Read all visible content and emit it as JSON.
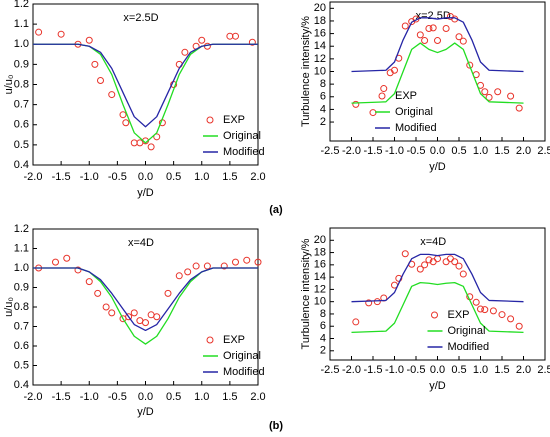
{
  "captions": [
    "(a)",
    "(b)"
  ],
  "chart_data": [
    {
      "type": "line",
      "annotation": "x=2.5D",
      "xlabel": "y/D",
      "ylabel": "u/u₀",
      "legend": "lower right",
      "xlim": [
        -2,
        2
      ],
      "xticks": [
        {
          "value": -2,
          "label": "-2.0"
        },
        -1.5,
        {
          "value": -1,
          "label": "-1.0"
        },
        -0.5,
        {
          "value": 0,
          "label": "0.0"
        },
        0.5,
        {
          "value": 1,
          "label": "1.0"
        },
        1.5,
        {
          "value": 2,
          "label": "2.0"
        }
      ],
      "ylim": [
        0.4,
        1.2
      ],
      "yticks": [
        0.4,
        0.5,
        0.6,
        0.7,
        0.8,
        0.9,
        {
          "value": 1,
          "label": "1.0"
        },
        1.1,
        1.2
      ],
      "series": [
        {
          "name": "EXP",
          "style": "markers",
          "color": "#e8332a",
          "x": [
            -1.9,
            -1.5,
            -1.2,
            -1.0,
            -0.9,
            -0.8,
            -0.6,
            -0.4,
            -0.35,
            -0.2,
            -0.1,
            0.0,
            0.1,
            0.2,
            0.3,
            0.5,
            0.6,
            0.7,
            0.9,
            1.0,
            1.1,
            1.5,
            1.6,
            1.9
          ],
          "values": [
            1.06,
            1.05,
            1.0,
            1.02,
            0.9,
            0.82,
            0.75,
            0.65,
            0.61,
            0.51,
            0.51,
            0.52,
            0.49,
            0.54,
            0.61,
            0.8,
            0.9,
            0.96,
            0.99,
            1.02,
            0.99,
            1.04,
            1.04,
            1.01
          ]
        },
        {
          "name": "Original",
          "style": "line",
          "color": "#22dd22",
          "x": [
            -2,
            -1.5,
            -1.2,
            -1,
            -0.8,
            -0.6,
            -0.4,
            -0.2,
            0,
            0.2,
            0.4,
            0.6,
            0.8,
            1,
            1.2,
            1.5,
            2
          ],
          "values": [
            1.0,
            1.0,
            1.0,
            0.99,
            0.95,
            0.85,
            0.7,
            0.56,
            0.51,
            0.56,
            0.7,
            0.85,
            0.95,
            0.99,
            1.0,
            1.0,
            1.0
          ]
        },
        {
          "name": "Modified",
          "style": "line",
          "color": "#2626a6",
          "x": [
            -2,
            -1.5,
            -1.2,
            -1,
            -0.8,
            -0.6,
            -0.4,
            -0.2,
            0,
            0.2,
            0.4,
            0.6,
            0.8,
            1,
            1.2,
            1.5,
            2
          ],
          "values": [
            1.0,
            1.0,
            1.0,
            0.99,
            0.96,
            0.88,
            0.76,
            0.64,
            0.59,
            0.64,
            0.76,
            0.88,
            0.96,
            0.99,
            1.0,
            1.0,
            1.0
          ]
        }
      ]
    },
    {
      "type": "line",
      "annotation": "x=2.5D",
      "xlabel": "y/D",
      "ylabel": "Turbulence intensity/%",
      "legend": "lower left",
      "xlim": [
        -2.5,
        2.5
      ],
      "xticks": [
        -2.5,
        {
          "value": -2,
          "label": "-2.0"
        },
        -1.5,
        {
          "value": -1,
          "label": "-1.0"
        },
        -0.5,
        {
          "value": 0,
          "label": "0.0"
        },
        0.5,
        {
          "value": 1,
          "label": "1.0"
        },
        1.5,
        {
          "value": 2,
          "label": "2.0"
        },
        2.5
      ],
      "ylim": [
        -1,
        21
      ],
      "yticks": [
        2,
        4,
        6,
        8,
        10,
        12,
        14,
        16,
        18,
        20
      ],
      "series": [
        {
          "name": "EXP",
          "style": "markers",
          "color": "#e8332a",
          "x": [
            -1.9,
            -1.5,
            -1.25,
            -1.1,
            -1.0,
            -0.9,
            -0.75,
            -0.6,
            -0.5,
            -0.4,
            -0.3,
            -0.2,
            -0.1,
            0.0,
            0.2,
            0.3,
            0.4,
            0.5,
            0.6,
            0.75,
            0.9,
            1.0,
            1.1,
            1.2,
            1.4,
            1.7,
            1.9
          ],
          "values": [
            4.8,
            3.5,
            7.3,
            9.8,
            10.2,
            12.1,
            17.2,
            17.9,
            18.3,
            15.8,
            14.9,
            16.8,
            16.9,
            14.9,
            16.8,
            18.7,
            18.3,
            15.5,
            14.8,
            11.0,
            9.5,
            7.8,
            6.8,
            5.9,
            6.8,
            6.1,
            4.2
          ]
        },
        {
          "name": "Original",
          "style": "line",
          "color": "#22dd22",
          "x": [
            -2,
            -1.2,
            -1,
            -0.8,
            -0.6,
            -0.4,
            -0.2,
            0,
            0.2,
            0.4,
            0.6,
            0.8,
            1,
            1.2,
            2
          ],
          "values": [
            5,
            5.2,
            6.5,
            10,
            13.5,
            14.5,
            13.5,
            13,
            13.5,
            14.5,
            13.5,
            10,
            6.5,
            5.2,
            5
          ]
        },
        {
          "name": "Modified",
          "style": "line",
          "color": "#2626a6",
          "x": [
            -2,
            -1.2,
            -1,
            -0.8,
            -0.6,
            -0.4,
            -0.2,
            0,
            0.2,
            0.4,
            0.6,
            0.8,
            1,
            1.2,
            2
          ],
          "values": [
            10,
            10.2,
            11.5,
            15,
            17.8,
            18.5,
            18.5,
            18.3,
            18.5,
            18.5,
            17.8,
            15,
            11.5,
            10.2,
            10
          ]
        }
      ]
    },
    {
      "type": "line",
      "annotation": "x=4D",
      "xlabel": "y/D",
      "ylabel": "u/u₀",
      "legend": "lower right",
      "xlim": [
        -2,
        2
      ],
      "xticks": [
        {
          "value": -2,
          "label": "-2.0"
        },
        -1.5,
        {
          "value": -1,
          "label": "-1.0"
        },
        -0.5,
        {
          "value": 0,
          "label": "0.0"
        },
        0.5,
        {
          "value": 1,
          "label": "1.0"
        },
        1.5,
        {
          "value": 2,
          "label": "2.0"
        }
      ],
      "ylim": [
        0.4,
        1.2
      ],
      "yticks": [
        0.4,
        0.5,
        0.6,
        0.7,
        0.8,
        0.9,
        {
          "value": 1,
          "label": "1.0"
        },
        1.1,
        1.2
      ],
      "series": [
        {
          "name": "EXP",
          "style": "markers",
          "color": "#e8332a",
          "x": [
            -1.9,
            -1.6,
            -1.4,
            -1.2,
            -1.0,
            -0.85,
            -0.7,
            -0.6,
            -0.4,
            -0.3,
            -0.2,
            -0.1,
            0.0,
            0.1,
            0.2,
            0.4,
            0.6,
            0.75,
            0.9,
            1.1,
            1.4,
            1.6,
            1.8,
            2.0
          ],
          "values": [
            1.0,
            1.03,
            1.05,
            0.99,
            0.93,
            0.87,
            0.8,
            0.77,
            0.74,
            0.75,
            0.77,
            0.73,
            0.72,
            0.76,
            0.75,
            0.87,
            0.96,
            0.98,
            1.01,
            1.01,
            1.01,
            1.03,
            1.04,
            1.03
          ]
        },
        {
          "name": "Original",
          "style": "line",
          "color": "#22dd22",
          "x": [
            -2,
            -1.2,
            -1,
            -0.8,
            -0.6,
            -0.4,
            -0.2,
            0,
            0.2,
            0.4,
            0.6,
            0.8,
            1,
            1.2,
            2
          ],
          "values": [
            1.0,
            1.0,
            0.98,
            0.93,
            0.85,
            0.74,
            0.65,
            0.61,
            0.65,
            0.74,
            0.85,
            0.93,
            0.98,
            1.0,
            1.0
          ]
        },
        {
          "name": "Modified",
          "style": "line",
          "color": "#2626a6",
          "x": [
            -2,
            -1.2,
            -1,
            -0.8,
            -0.6,
            -0.4,
            -0.2,
            0,
            0.2,
            0.4,
            0.6,
            0.8,
            1,
            1.2,
            2
          ],
          "values": [
            1.0,
            1.0,
            0.98,
            0.94,
            0.87,
            0.79,
            0.71,
            0.68,
            0.71,
            0.79,
            0.87,
            0.94,
            0.98,
            1.0,
            1.0
          ]
        }
      ]
    },
    {
      "type": "line",
      "annotation": "x=4D",
      "xlabel": "y/D",
      "ylabel": "Turbulence intensity/%",
      "legend": "lower center",
      "xlim": [
        -2.5,
        2.5
      ],
      "xticks": [
        -2.5,
        {
          "value": -2,
          "label": "-2.0"
        },
        -1.5,
        {
          "value": -1,
          "label": "-1.0"
        },
        -0.5,
        {
          "value": 0,
          "label": "0.0"
        },
        0.5,
        {
          "value": 1,
          "label": "1.0"
        },
        1.5,
        {
          "value": 2,
          "label": "2.0"
        },
        2.5
      ],
      "ylim": [
        0.5,
        22
      ],
      "yticks": [
        2,
        4,
        6,
        8,
        10,
        12,
        14,
        16,
        18,
        20
      ],
      "series": [
        {
          "name": "EXP",
          "style": "markers",
          "color": "#e8332a",
          "x": [
            -1.9,
            -1.6,
            -1.4,
            -1.25,
            -1.0,
            -0.9,
            -0.75,
            -0.6,
            -0.4,
            -0.3,
            -0.2,
            -0.1,
            0.0,
            0.2,
            0.3,
            0.4,
            0.5,
            0.6,
            0.75,
            0.9,
            1.0,
            1.1,
            1.3,
            1.5,
            1.7,
            1.9
          ],
          "values": [
            6.7,
            9.8,
            10.0,
            10.6,
            12.7,
            13.8,
            17.8,
            16.1,
            15.3,
            16.0,
            16.8,
            16.5,
            17.0,
            16.5,
            17.0,
            16.5,
            15.8,
            14.5,
            10.8,
            9.9,
            8.8,
            8.7,
            8.5,
            7.9,
            7.2,
            6.0
          ]
        },
        {
          "name": "Original",
          "style": "line",
          "color": "#22dd22",
          "x": [
            -2,
            -1.2,
            -1,
            -0.8,
            -0.6,
            -0.4,
            -0.2,
            0,
            0.2,
            0.4,
            0.6,
            0.8,
            1,
            1.2,
            2
          ],
          "values": [
            5,
            5.2,
            6.5,
            9.5,
            12.5,
            13.1,
            13.0,
            12.8,
            13.0,
            13.1,
            12.5,
            9.5,
            6.5,
            5.2,
            5
          ]
        },
        {
          "name": "Modified",
          "style": "line",
          "color": "#2626a6",
          "x": [
            -2,
            -1.2,
            -1,
            -0.8,
            -0.6,
            -0.4,
            -0.2,
            0,
            0.2,
            0.4,
            0.6,
            0.8,
            1,
            1.2,
            2
          ],
          "values": [
            10,
            10.2,
            11.5,
            14.5,
            17.0,
            17.7,
            17.7,
            17.5,
            17.7,
            17.7,
            17.0,
            14.5,
            11.5,
            10.2,
            10
          ]
        }
      ]
    }
  ]
}
